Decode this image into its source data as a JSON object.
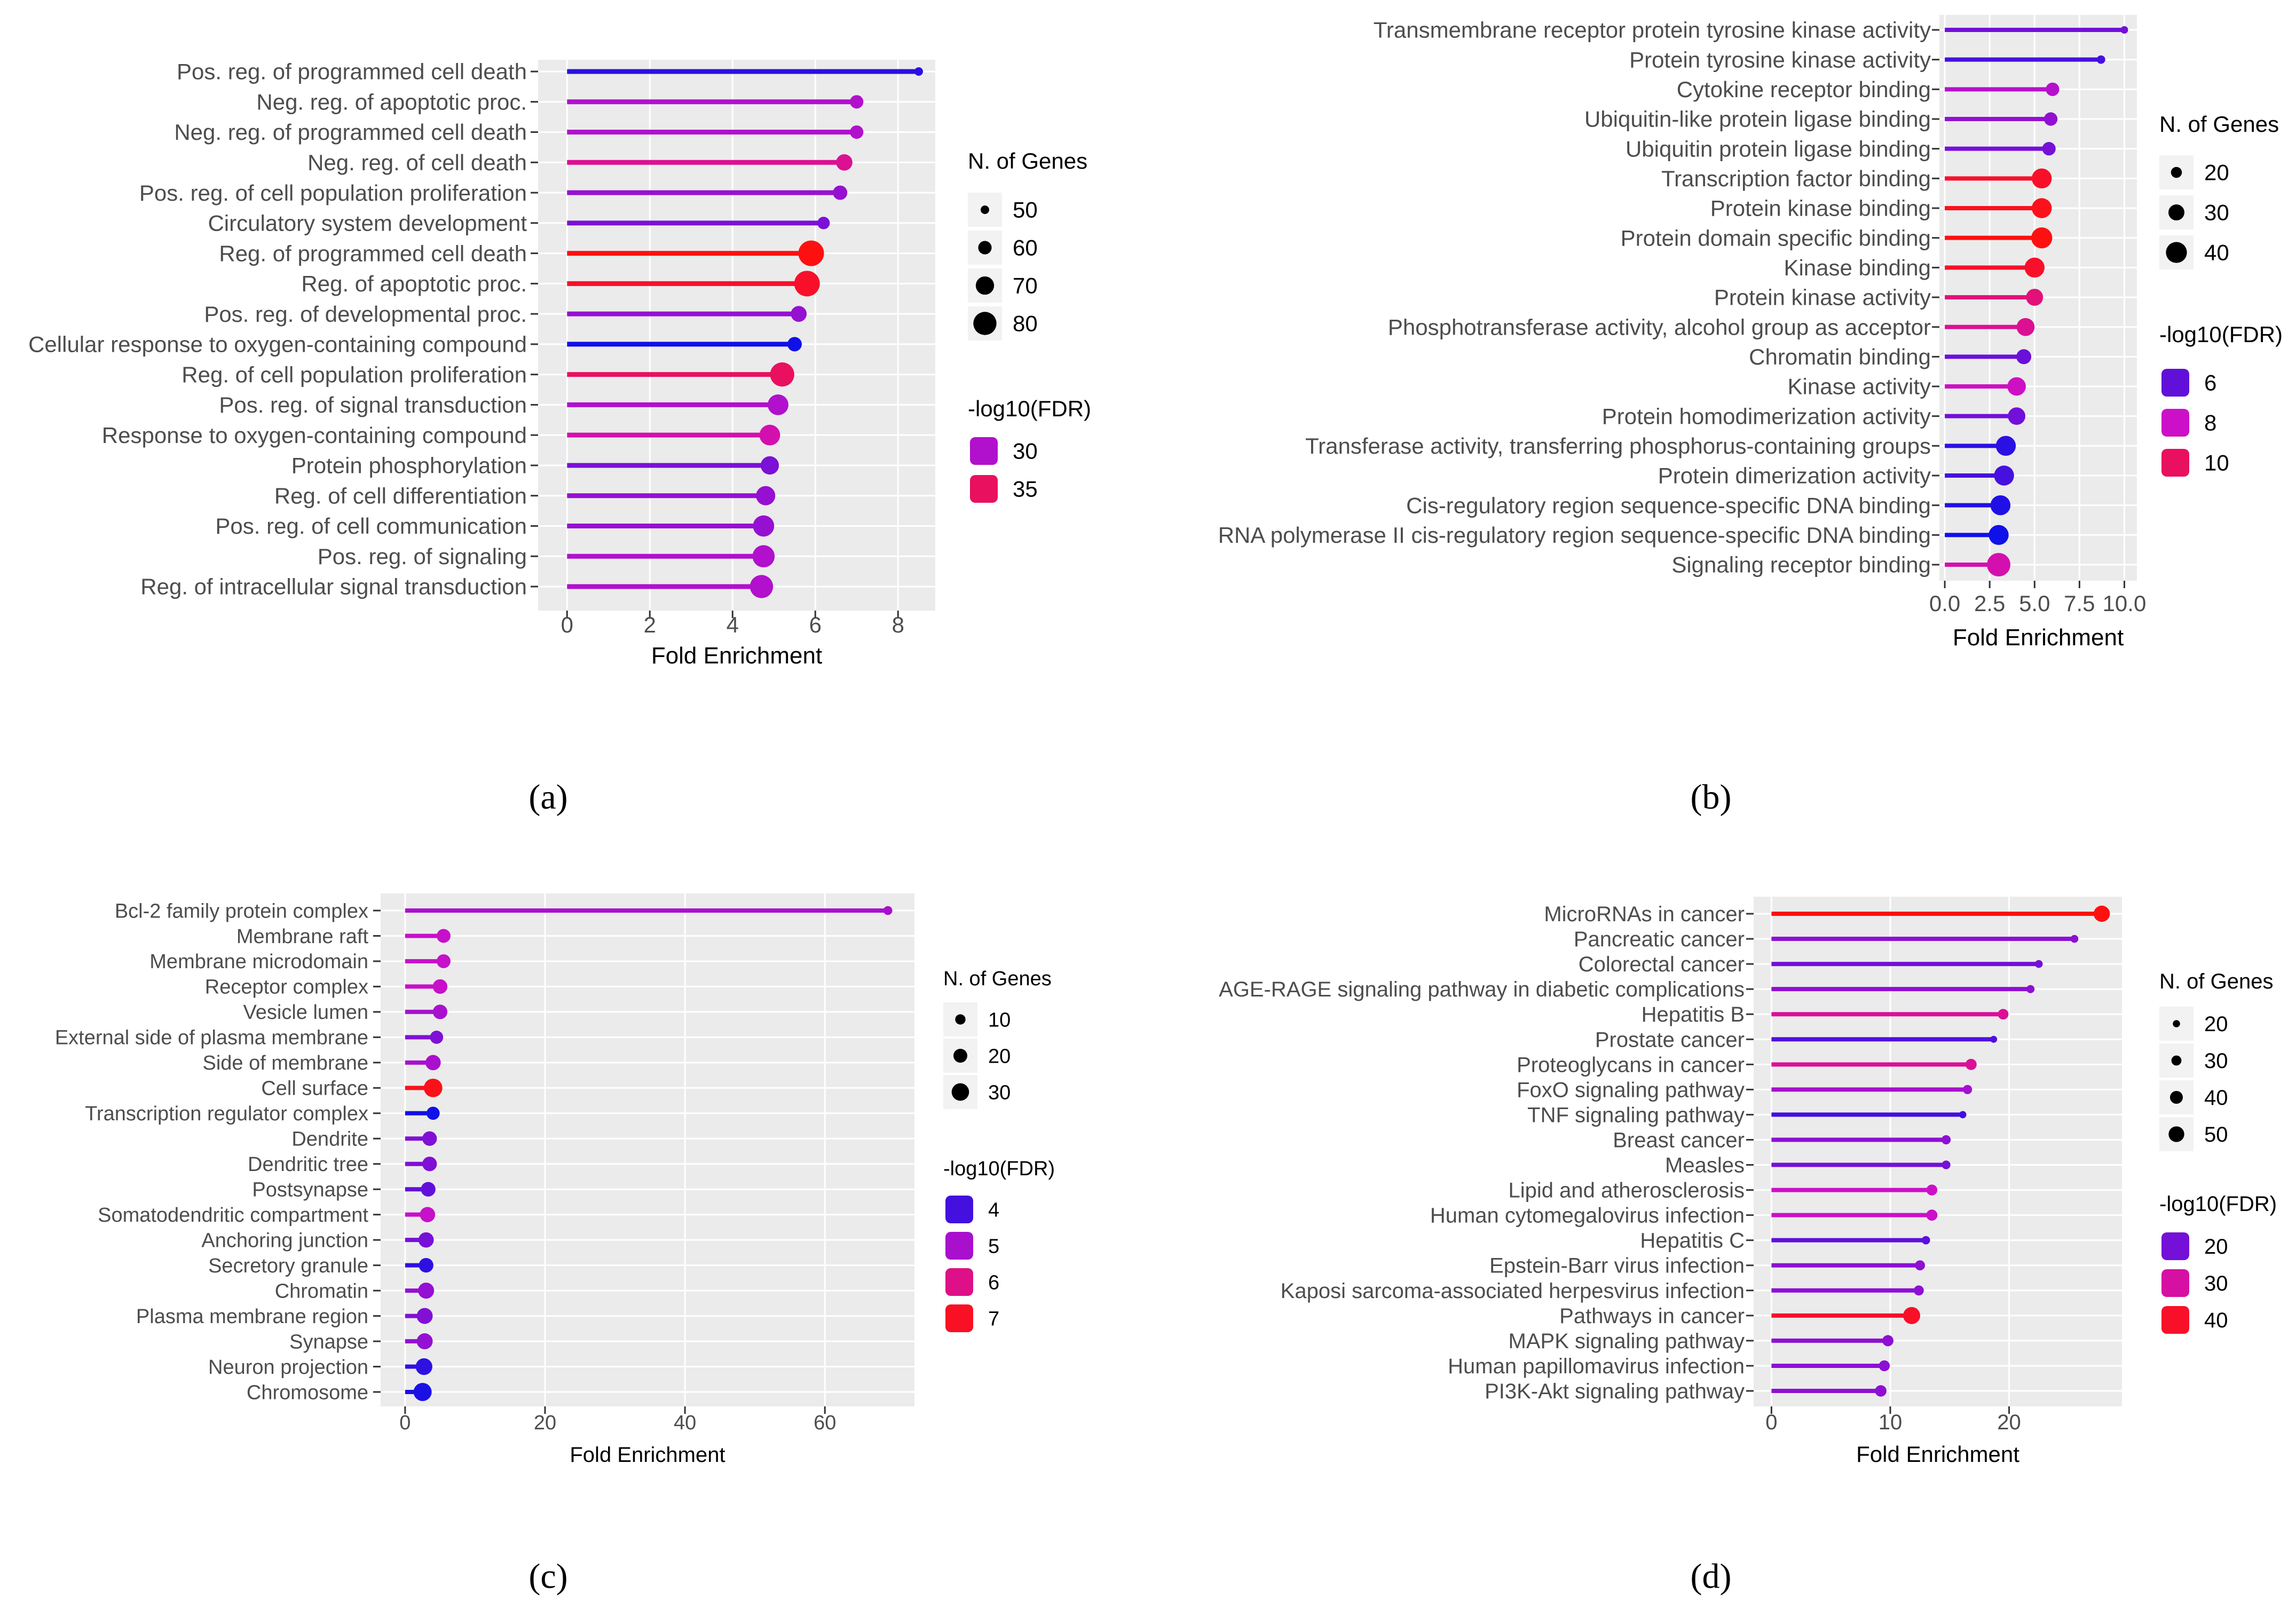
{
  "figure_labels": [
    "(a)",
    "(b)",
    "(c)",
    "(d)"
  ],
  "chart_data": [
    {
      "panel": "(a)",
      "type": "lollipop",
      "xlabel": "Fold Enrichment",
      "xlim": [
        -0.7,
        8.9
      ],
      "xticks": [
        0,
        2,
        4,
        6,
        8
      ],
      "size_legend_title": "N. of Genes",
      "size_legend": [
        50,
        60,
        70,
        80
      ],
      "size_range": [
        50,
        85
      ],
      "color_legend_title": "-log10(FDR)",
      "color_legend": [
        30,
        35
      ],
      "color_range": [
        24,
        38
      ],
      "colors": {
        "low": "#1010e8",
        "mid": "#cc10c8",
        "high": "#ff1010"
      },
      "categories": [
        "Pos. reg. of programmed cell death",
        "Neg. reg. of apoptotic proc.",
        "Neg. reg. of programmed cell death",
        "Neg. reg. of cell death",
        "Pos. reg. of cell population proliferation",
        "Circulatory system development",
        "Reg. of programmed cell death",
        "Reg. of apoptotic proc.",
        "Pos. reg. of developmental proc.",
        "Cellular response to oxygen-containing compound",
        "Reg. of cell population proliferation",
        "Pos. reg. of signal transduction",
        "Response to oxygen-containing compound",
        "Protein phosphorylation",
        "Reg. of cell differentiation",
        "Pos. reg. of cell communication",
        "Pos. reg. of signaling",
        "Reg. of intracellular signal transduction"
      ],
      "values": [
        8.5,
        7.0,
        7.0,
        6.7,
        6.6,
        6.2,
        5.9,
        5.8,
        5.6,
        5.5,
        5.2,
        5.1,
        4.9,
        4.9,
        4.8,
        4.75,
        4.75,
        4.7
      ],
      "genes": [
        48,
        60,
        60,
        66,
        62,
        58,
        85,
        85,
        65,
        62,
        82,
        75,
        75,
        70,
        72,
        76,
        78,
        80
      ],
      "fdr": [
        25,
        30,
        30,
        33,
        29,
        28,
        38,
        37,
        29,
        24,
        35,
        30,
        32,
        28,
        29,
        29,
        30,
        30
      ]
    },
    {
      "panel": "(b)",
      "type": "lollipop",
      "xlabel": "Fold Enrichment",
      "xlim": [
        -0.3,
        10.7
      ],
      "xticks": [
        0,
        2.5,
        5,
        7.5,
        10
      ],
      "xtick_labels": [
        "0.0",
        "2.5",
        "5.0",
        "7.5",
        "10.0"
      ],
      "size_legend_title": "N. of Genes",
      "size_legend": [
        20,
        30,
        40
      ],
      "size_range": [
        13,
        45
      ],
      "color_legend_title": "-log10(FDR)",
      "color_legend": [
        6,
        8,
        10
      ],
      "color_range": [
        4.5,
        11.5
      ],
      "colors": {
        "low": "#1010e8",
        "mid": "#cc10c8",
        "high": "#ff1010"
      },
      "categories": [
        "Transmembrane receptor protein tyrosine kinase activity",
        "Protein tyrosine kinase activity",
        "Cytokine receptor binding",
        "Ubiquitin-like protein ligase binding",
        "Ubiquitin protein ligase binding",
        "Transcription factor binding",
        "Protein kinase binding",
        "Protein domain specific binding",
        "Kinase binding",
        "Protein kinase activity",
        "Phosphotransferase activity, alcohol group as acceptor",
        "Chromatin binding",
        "Kinase activity",
        "Protein homodimerization activity",
        "Transferase activity, transferring phosphorus-containing groups",
        "Protein dimerization activity",
        "Cis-regulatory region sequence-specific DNA binding",
        "RNA polymerase II cis-regulatory region sequence-specific DNA binding",
        "Signaling receptor binding"
      ],
      "values": [
        10.0,
        8.7,
        6.0,
        5.9,
        5.8,
        5.4,
        5.4,
        5.4,
        5.0,
        5.0,
        4.5,
        4.4,
        4.0,
        4.0,
        3.4,
        3.3,
        3.1,
        3.0,
        3.0
      ],
      "genes": [
        13,
        15,
        25,
        25,
        25,
        38,
        38,
        40,
        38,
        32,
        34,
        28,
        35,
        33,
        38,
        38,
        38,
        38,
        45
      ],
      "fdr": [
        6.3,
        5.5,
        7.6,
        6.9,
        6.4,
        11.0,
        11.3,
        11.5,
        11.0,
        9.5,
        9.0,
        6.2,
        8.1,
        6.3,
        5.0,
        5.5,
        4.8,
        4.5,
        8.5
      ]
    },
    {
      "panel": "(c)",
      "type": "lollipop",
      "xlabel": "Fold Enrichment",
      "xlim": [
        -3.5,
        72.8
      ],
      "xticks": [
        0,
        20,
        40,
        60
      ],
      "size_legend_title": "N. of Genes",
      "size_legend": [
        10,
        20,
        30
      ],
      "size_range": [
        5,
        35
      ],
      "color_legend_title": "-log10(FDR)",
      "color_legend": [
        4,
        5,
        6,
        7
      ],
      "color_range": [
        3.5,
        7.2
      ],
      "colors": {
        "low": "#1010e8",
        "mid": "#cc10c8",
        "high": "#ff1010"
      },
      "categories": [
        "Bcl-2 family protein complex",
        "Membrane raft",
        "Membrane microdomain",
        "Receptor complex",
        "Vesicle lumen",
        "External side of plasma membrane",
        "Side of membrane",
        "Cell surface",
        "Transcription regulator complex",
        "Dendrite",
        "Dendritic tree",
        "Postsynapse",
        "Somatodendritic compartment",
        "Anchoring junction",
        "Secretory granule",
        "Chromatin",
        "Plasma membrane region",
        "Synapse",
        "Neuron projection",
        "Chromosome"
      ],
      "values": [
        69,
        5.5,
        5.5,
        5.0,
        5.0,
        4.5,
        4.0,
        4.0,
        4.0,
        3.5,
        3.5,
        3.3,
        3.2,
        3.0,
        3.0,
        3.0,
        2.8,
        2.8,
        2.7,
        2.5
      ],
      "genes": [
        6,
        20,
        20,
        22,
        22,
        18,
        24,
        33,
        18,
        22,
        22,
        22,
        24,
        24,
        22,
        26,
        26,
        26,
        28,
        32
      ],
      "fdr": [
        5.0,
        5.3,
        5.3,
        5.3,
        5.0,
        4.6,
        5.0,
        7.1,
        3.5,
        4.6,
        4.6,
        4.3,
        5.3,
        4.5,
        3.8,
        4.8,
        4.6,
        4.8,
        3.8,
        3.6
      ]
    },
    {
      "panel": "(d)",
      "type": "lollipop",
      "xlabel": "Fold Enrichment",
      "xlim": [
        -1.5,
        29.5
      ],
      "xticks": [
        0,
        10,
        20
      ],
      "size_legend_title": "N. of Genes",
      "size_legend": [
        20,
        30,
        40,
        50
      ],
      "size_range": [
        17,
        55
      ],
      "color_legend_title": "-log10(FDR)",
      "color_legend": [
        20,
        30,
        40
      ],
      "color_range": [
        12,
        42
      ],
      "colors": {
        "low": "#1010e8",
        "mid": "#cc10c8",
        "high": "#ff1010"
      },
      "categories": [
        "MicroRNAs in cancer",
        "Pancreatic cancer",
        "Colorectal cancer",
        "AGE-RAGE signaling pathway in diabetic complications",
        "Hepatitis B",
        "Prostate cancer",
        "Proteoglycans in cancer",
        "FoxO signaling pathway",
        "TNF signaling pathway",
        "Breast cancer",
        "Measles",
        "Lipid and atherosclerosis",
        "Human cytomegalovirus infection",
        "Hepatitis C",
        "Epstein-Barr virus infection",
        "Kaposi sarcoma-associated herpesvirus infection",
        "Pathways in cancer",
        "MAPK signaling pathway",
        "Human papillomavirus infection",
        "PI3K-Akt signaling pathway"
      ],
      "values": [
        27.8,
        25.5,
        22.5,
        21.8,
        19.5,
        18.7,
        16.8,
        16.5,
        16.1,
        14.7,
        14.7,
        13.5,
        13.5,
        13.0,
        12.5,
        12.4,
        11.8,
        9.8,
        9.5,
        9.2
      ],
      "genes": [
        52,
        22,
        22,
        23,
        32,
        19,
        34,
        27,
        20,
        27,
        25,
        33,
        34,
        24,
        30,
        30,
        55,
        34,
        33,
        35
      ],
      "fdr": [
        42,
        22,
        20,
        22,
        31,
        17,
        31,
        24,
        16,
        22,
        20,
        27,
        27,
        18,
        22,
        22,
        40,
        22,
        22,
        22
      ]
    }
  ]
}
